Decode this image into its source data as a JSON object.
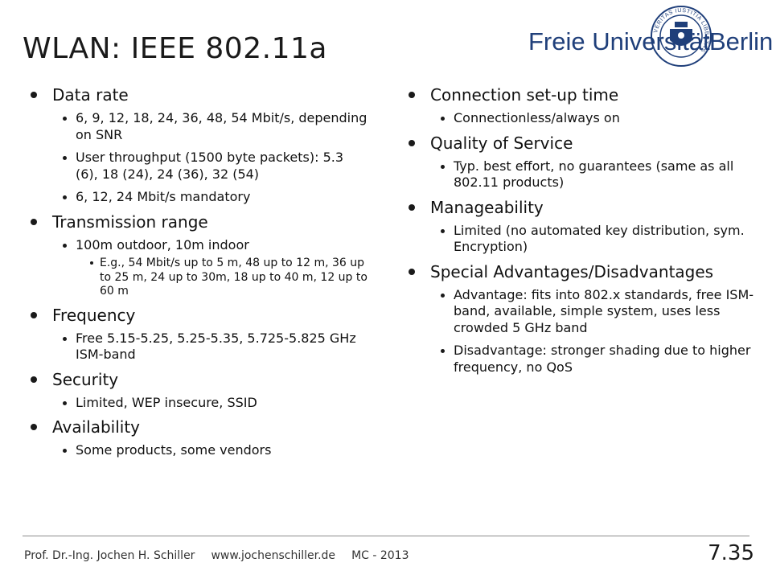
{
  "title": "WLAN: IEEE 802.11a",
  "logo": {
    "left_text": "Freie Universität",
    "right_text": "Berlin",
    "seal_text": "VERITAS IUSTITIA LIBERTAS"
  },
  "colors": {
    "logo_blue": "#1f3f7a",
    "text": "#1a1a1a"
  },
  "left": [
    {
      "label": "Data rate",
      "subs": [
        {
          "text": "6, 9, 12, 18, 24, 36, 48, 54 Mbit/s, depending on SNR"
        },
        {
          "text": "User throughput (1500 byte packets): 5.3 (6), 18 (24), 24 (36), 32 (54)"
        },
        {
          "text": "6, 12, 24 Mbit/s mandatory"
        }
      ]
    },
    {
      "label": "Transmission range",
      "subs": [
        {
          "text": "100m outdoor, 10m indoor",
          "subs": [
            {
              "text": "E.g., 54 Mbit/s up to 5 m, 48 up to 12 m, 36 up to 25 m, 24 up to 30m, 18 up to 40 m, 12 up to 60 m"
            }
          ]
        }
      ]
    },
    {
      "label": "Frequency",
      "subs": [
        {
          "text": "Free 5.15-5.25, 5.25-5.35, 5.725-5.825 GHz ISM-band"
        }
      ]
    },
    {
      "label": "Security",
      "subs": [
        {
          "text": "Limited, WEP insecure, SSID"
        }
      ]
    },
    {
      "label": "Availability",
      "subs": [
        {
          "text": "Some products, some vendors"
        }
      ]
    }
  ],
  "right": [
    {
      "label": "Connection set-up time",
      "subs": [
        {
          "text": "Connectionless/always on"
        }
      ]
    },
    {
      "label": "Quality of Service",
      "subs": [
        {
          "text": "Typ. best effort, no guarantees (same as all 802.11 products)"
        }
      ]
    },
    {
      "label": "Manageability",
      "subs": [
        {
          "text": "Limited (no automated key distribution, sym. Encryption)"
        }
      ]
    },
    {
      "label": "Special Advantages/Disadvantages",
      "subs": [
        {
          "text": "Advantage: fits into 802.x standards, free ISM-band, available, simple system, uses less crowded 5 GHz band"
        },
        {
          "text": "Disadvantage: stronger shading due to higher frequency, no QoS"
        }
      ]
    }
  ],
  "footer": {
    "author": "Prof. Dr.-Ing. Jochen H. Schiller",
    "url": "www.jochenschiller.de",
    "course": "MC - 2013",
    "page": "7.35"
  }
}
